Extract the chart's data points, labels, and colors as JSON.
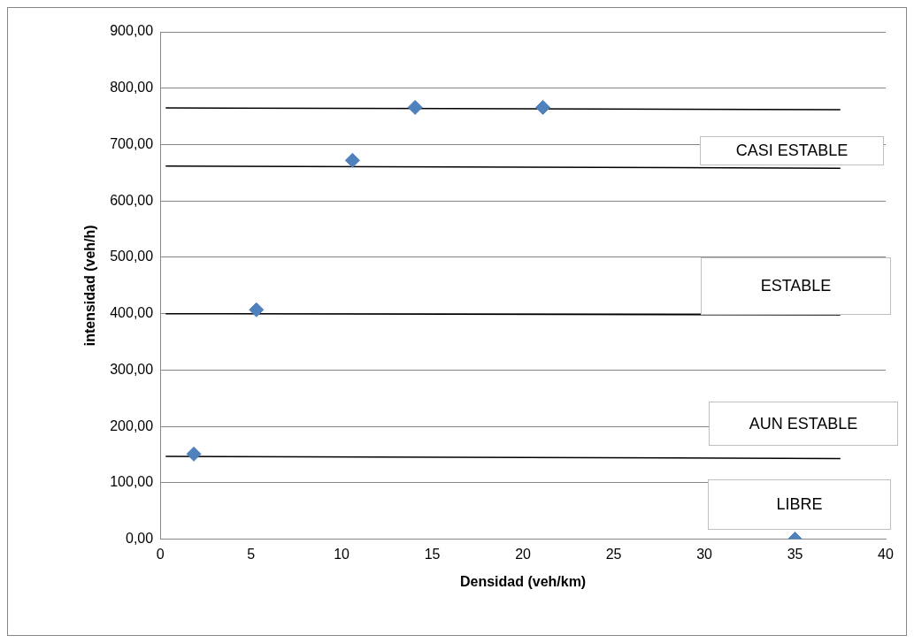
{
  "chart_data": {
    "type": "scatter",
    "xlabel": "Densidad (veh/km)",
    "ylabel": "intensidad (veh/h)",
    "xlim": [
      0,
      40
    ],
    "xticks": [
      0,
      5,
      10,
      15,
      20,
      25,
      30,
      35,
      40
    ],
    "ylim": [
      0,
      900
    ],
    "yticks": [
      {
        "value": 0,
        "label": "0,00"
      },
      {
        "value": 100,
        "label": "100,00"
      },
      {
        "value": 200,
        "label": "200,00"
      },
      {
        "value": 300,
        "label": "300,00"
      },
      {
        "value": 400,
        "label": "400,00"
      },
      {
        "value": 500,
        "label": "500,00"
      },
      {
        "value": 600,
        "label": "600,00"
      },
      {
        "value": 700,
        "label": "700,00"
      },
      {
        "value": 800,
        "label": "800,00"
      },
      {
        "value": 900,
        "label": "900,00"
      }
    ],
    "grid": "y",
    "legend": false,
    "marker": "diamond",
    "series": [
      {
        "color": "#4f81bd",
        "x": [
          1.85,
          5.3,
          10.6,
          14.05,
          21.1,
          35
        ],
        "values": [
          151,
          407,
          672,
          766,
          766,
          0
        ]
      },
      {
        "type": "line",
        "marker": "none",
        "color": "#000000",
        "x": [
          0.3,
          37.5
        ],
        "values": [
          765,
          762
        ]
      },
      {
        "type": "line",
        "marker": "none",
        "color": "#000000",
        "x": [
          0.3,
          37.5
        ],
        "values": [
          662,
          658
        ]
      },
      {
        "type": "line",
        "marker": "none",
        "color": "#000000",
        "x": [
          0.3,
          37.5
        ],
        "values": [
          400,
          398
        ]
      },
      {
        "type": "line",
        "marker": "none",
        "color": "#000000",
        "x": [
          0.3,
          37.5
        ],
        "values": [
          147,
          143
        ]
      }
    ],
    "annotations": [
      "CASI ESTABLE",
      "ESTABLE",
      "AUN ESTABLE",
      "LIBRE"
    ]
  }
}
